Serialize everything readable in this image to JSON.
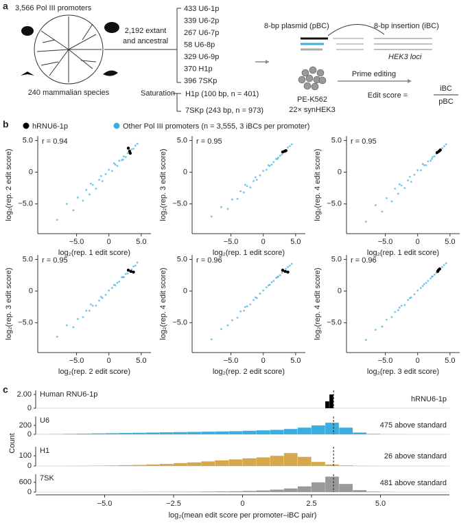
{
  "labels": {
    "a": "a",
    "b": "b",
    "c": "c"
  },
  "panel_a": {
    "promoters": "3,566 Pol III promoters",
    "species": "240 mammalian species",
    "extant": "2,192 extant",
    "ancestral": "and ancestral",
    "library": [
      "433 U6-1p",
      "339 U6-2p",
      "267 U6-7p",
      "58 U6-8p",
      "329 U6-9p",
      "370 H1p",
      "396 7SKp"
    ],
    "saturation": "Saturation",
    "saturation_items": [
      "H1p (100 bp, n = 401)",
      "7SKp (243 bp, n = 973)"
    ],
    "plasmid": "8-bp plasmid (pBC)",
    "insertion": "8-bp insertion (iBC)",
    "loci": "HEK3 loci",
    "cells": "PE-K562",
    "cells_sub": "22× synHEK3",
    "editing": "Prime editing",
    "score": "Edit score =",
    "numerator": "iBC",
    "denominator": "pBC"
  },
  "legend": [
    {
      "name": "hRNU6-1p",
      "color": "#000000"
    },
    {
      "name": "Other Pol III promoters (n = 3,555, 3 iBCs per promoter)",
      "color": "#3aaee0"
    }
  ],
  "count_label": "Count",
  "chart_data": [
    {
      "type": "scatter",
      "annotation": "r = 0.94",
      "xlabel": "log₂(rep. 1 edit score)",
      "ylabel": "log₂(rep. 2 edit score)",
      "xlim": [
        -11,
        6.5
      ],
      "ylim": [
        -9.7,
        5.7
      ],
      "xticks": [
        {
          "value": -5,
          "label": "−5.0"
        },
        0,
        {
          "value": 5,
          "label": "5.0"
        }
      ],
      "yticks": [
        {
          "value": -5,
          "label": "−5.0"
        },
        0,
        {
          "value": 5,
          "label": "5.0"
        }
      ],
      "series": [
        {
          "color": "#3aaee0",
          "x": [
            -8,
            -6.5,
            -5.5,
            -4.8,
            -4,
            -3.5,
            -3,
            -2.5,
            -2,
            -1.5,
            -1,
            -0.5,
            0,
            0.5,
            1,
            1.3,
            1.6,
            2,
            2.3,
            2.6,
            2.9,
            3.2,
            3.5,
            3.8,
            4.1,
            4.4,
            -2.8,
            -1.2,
            0.8,
            2.2
          ],
          "values": [
            -7.5,
            -5,
            -6,
            -4,
            -4.5,
            -2.8,
            -3.5,
            -2,
            -2.6,
            -1.2,
            -1.4,
            -0.3,
            0.4,
            0.2,
            1.2,
            1,
            1.8,
            1.9,
            2.5,
            2.4,
            3,
            3.1,
            3.6,
            3.7,
            4.2,
            4.5,
            -1.8,
            -0.6,
            1.4,
            2
          ]
        },
        {
          "color": "#000000",
          "x": [
            3.0,
            3.2,
            3.3
          ],
          "values": [
            3.8,
            3.3,
            3.0
          ]
        }
      ]
    },
    {
      "type": "scatter",
      "annotation": "r = 0.95",
      "xlabel": "log₂(rep. 1 edit score)",
      "ylabel": "log₂(rep. 3 edit score)",
      "xlim": [
        -11,
        6.5
      ],
      "ylim": [
        -9.7,
        5.7
      ],
      "xticks": [
        {
          "value": -5,
          "label": "−5.0"
        },
        0,
        {
          "value": 5,
          "label": "5.0"
        }
      ],
      "yticks": [
        {
          "value": -5,
          "label": "−5.0"
        },
        0,
        {
          "value": 5,
          "label": "5.0"
        }
      ],
      "series": [
        {
          "color": "#3aaee0",
          "x": [
            -8,
            -6.5,
            -5.5,
            -4.8,
            -4,
            -3.5,
            -3,
            -2.5,
            -2,
            -1.5,
            -1,
            -0.5,
            0,
            0.5,
            1,
            1.3,
            1.6,
            2,
            2.3,
            2.6,
            2.9,
            3.2,
            3.5,
            3.8,
            4.1,
            4.4,
            -2.8,
            -1.2,
            0.8,
            2.2
          ],
          "values": [
            -7,
            -5.5,
            -5.8,
            -4.3,
            -4.2,
            -3,
            -3.2,
            -2.2,
            -2.4,
            -1.4,
            -1.2,
            -0.5,
            0.2,
            0.4,
            1,
            1.2,
            1.6,
            2.1,
            2.3,
            2.6,
            2.8,
            3.2,
            3.5,
            3.9,
            4.1,
            4.4,
            -2,
            -0.8,
            1.1,
            2.1
          ]
        },
        {
          "color": "#000000",
          "x": [
            3.0,
            3.3,
            3.5
          ],
          "values": [
            3.2,
            3.3,
            3.4
          ]
        }
      ]
    },
    {
      "type": "scatter",
      "annotation": "r = 0.95",
      "xlabel": "log₂(rep. 1 edit score)",
      "ylabel": "log₂(rep. 4 edit score)",
      "xlim": [
        -11,
        6.5
      ],
      "ylim": [
        -9.7,
        5.7
      ],
      "xticks": [
        {
          "value": -5,
          "label": "−5.0"
        },
        0,
        {
          "value": 5,
          "label": "5.0"
        }
      ],
      "yticks": [
        {
          "value": -5,
          "label": "−5.0"
        },
        0,
        {
          "value": 5,
          "label": "5.0"
        }
      ],
      "series": [
        {
          "color": "#3aaee0",
          "x": [
            -8,
            -6.5,
            -5.5,
            -4.8,
            -4,
            -3.5,
            -3,
            -2.5,
            -2,
            -1.5,
            -1,
            -0.5,
            0,
            0.5,
            1,
            1.3,
            1.6,
            2,
            2.3,
            2.6,
            2.9,
            3.2,
            3.5,
            3.8,
            4.1,
            4.4,
            -2.8,
            -1.2,
            0.8,
            2.2
          ],
          "values": [
            -7.8,
            -5.2,
            -6.2,
            -4.1,
            -4.6,
            -2.6,
            -3.4,
            -2.1,
            -2.5,
            -1.3,
            -1.5,
            -0.4,
            0.3,
            0.3,
            1.1,
            1.1,
            1.7,
            1.8,
            2.4,
            2.5,
            2.9,
            3.2,
            3.5,
            3.8,
            4.1,
            4.4,
            -1.9,
            -0.7,
            1.3,
            2.1
          ]
        },
        {
          "color": "#000000",
          "x": [
            3.0,
            3.3,
            3.5
          ],
          "values": [
            3.1,
            3.3,
            3.5
          ]
        }
      ]
    },
    {
      "type": "scatter",
      "annotation": "r = 0.95",
      "xlabel": "log₂(rep. 2 edit score)",
      "ylabel": "log₂(rep. 3 edit score)",
      "xlim": [
        -11,
        6.5
      ],
      "ylim": [
        -9.7,
        5.7
      ],
      "xticks": [
        {
          "value": -5,
          "label": "−5.0"
        },
        0,
        {
          "value": 5,
          "label": "5.0"
        }
      ],
      "yticks": [
        {
          "value": -5,
          "label": "−5.0"
        },
        0,
        {
          "value": 5,
          "label": "5.0"
        }
      ],
      "series": [
        {
          "color": "#3aaee0",
          "x": [
            -8,
            -6.5,
            -5.5,
            -4.8,
            -4,
            -3.5,
            -3,
            -2.5,
            -2,
            -1.5,
            -1,
            -0.5,
            0,
            0.5,
            1,
            1.3,
            1.6,
            2,
            2.3,
            2.6,
            2.9,
            3.2,
            3.5,
            3.8,
            4.1,
            4.4,
            -2.8,
            -1.2,
            0.8,
            2.2
          ],
          "values": [
            -7.2,
            -5.4,
            -5.7,
            -4.4,
            -4.1,
            -3.1,
            -3.1,
            -2.3,
            -2.3,
            -1.5,
            -1.1,
            -0.6,
            0.1,
            0.5,
            0.9,
            1.3,
            1.5,
            2.2,
            2.2,
            2.7,
            2.8,
            3.2,
            3.4,
            3.9,
            4.0,
            4.5,
            -2.1,
            -0.9,
            1.0,
            2.2
          ]
        },
        {
          "color": "#000000",
          "x": [
            3.0,
            3.4,
            3.8
          ],
          "values": [
            3.3,
            3.1,
            3.0
          ]
        }
      ]
    },
    {
      "type": "scatter",
      "annotation": "r = 0.96",
      "xlabel": "log₂(rep. 2 edit score)",
      "ylabel": "log₂(rep. 4 edit score)",
      "xlim": [
        -11,
        6.5
      ],
      "ylim": [
        -9.7,
        5.7
      ],
      "xticks": [
        {
          "value": -5,
          "label": "−5.0"
        },
        0,
        {
          "value": 5,
          "label": "5.0"
        }
      ],
      "yticks": [
        {
          "value": -5,
          "label": "−5.0"
        },
        0,
        {
          "value": 5,
          "label": "5.0"
        }
      ],
      "series": [
        {
          "color": "#3aaee0",
          "x": [
            -8,
            -6.5,
            -5.5,
            -4.8,
            -4,
            -3.5,
            -3,
            -2.5,
            -2,
            -1.5,
            -1,
            -0.5,
            0,
            0.5,
            1,
            1.3,
            1.6,
            2,
            2.3,
            2.6,
            2.9,
            3.2,
            3.5,
            3.8,
            4.1,
            4.4,
            -2.8,
            -1.2,
            0.8,
            2.2
          ],
          "values": [
            -7.6,
            -6,
            -5.4,
            -4.6,
            -4.2,
            -3.2,
            -3.1,
            -2.4,
            -2.1,
            -1.4,
            -1.1,
            -0.4,
            0.1,
            0.6,
            1,
            1.4,
            1.6,
            2.1,
            2.3,
            2.5,
            2.9,
            3.1,
            3.5,
            3.8,
            4.0,
            4.3,
            -2.5,
            -1,
            0.9,
            2.2
          ]
        },
        {
          "color": "#000000",
          "x": [
            3.0,
            3.4,
            3.8
          ],
          "values": [
            3.3,
            3.1,
            3.0
          ]
        }
      ]
    },
    {
      "type": "scatter",
      "annotation": "r = 0.96",
      "xlabel": "log₂(rep. 3 edit score)",
      "ylabel": "log₂(rep. 4 edit score)",
      "xlim": [
        -11,
        6.5
      ],
      "ylim": [
        -9.7,
        5.7
      ],
      "xticks": [
        {
          "value": -5,
          "label": "−5.0"
        },
        0,
        {
          "value": 5,
          "label": "5.0"
        }
      ],
      "yticks": [
        {
          "value": -5,
          "label": "−5.0"
        },
        0,
        {
          "value": 5,
          "label": "5.0"
        }
      ],
      "series": [
        {
          "color": "#3aaee0",
          "x": [
            -8,
            -6.5,
            -5.5,
            -4.8,
            -4,
            -3.5,
            -3,
            -2.5,
            -2,
            -1.5,
            -1,
            -0.5,
            0,
            0.5,
            1,
            1.3,
            1.6,
            2,
            2.3,
            2.6,
            2.9,
            3.2,
            3.5,
            3.8,
            4.1,
            4.4,
            -2.8,
            -1.2,
            0.8,
            2.2
          ],
          "values": [
            -7.7,
            -6.1,
            -5.6,
            -4.5,
            -4.1,
            -3.3,
            -3,
            -2.3,
            -2.2,
            -1.4,
            -1.0,
            -0.5,
            0.1,
            0.5,
            1.1,
            1.3,
            1.6,
            2.0,
            2.3,
            2.6,
            2.9,
            3.2,
            3.5,
            3.8,
            4.1,
            4.4,
            -2.6,
            -1.1,
            0.8,
            2.3
          ]
        },
        {
          "color": "#000000",
          "x": [
            3.1,
            3.2,
            3.4
          ],
          "values": [
            3.1,
            3.3,
            3.5
          ]
        }
      ]
    },
    {
      "type": "histogram",
      "title": "Human RNU6-1p",
      "annotation": "hRNU6-1p",
      "color": "#000000",
      "xlim": [
        -7.5,
        7.5
      ],
      "ylim": [
        0,
        2.6
      ],
      "yticks": [
        0,
        {
          "value": 2,
          "label": "2.00"
        }
      ],
      "vline": 3.3,
      "bins": [
        3.0,
        3.15,
        3.3
      ],
      "counts": [
        1,
        2
      ]
    },
    {
      "type": "histogram",
      "title": "U6",
      "annotation": "475 above standard",
      "color": "#3aaee0",
      "xlim": [
        -7.5,
        7.5
      ],
      "ylim": [
        0,
        400
      ],
      "yticks": [
        0,
        200
      ],
      "vline": 3.3,
      "bins": [
        -7.5,
        -7,
        -6.5,
        -6,
        -5.5,
        -5,
        -4.5,
        -4,
        -3.5,
        -3,
        -2.5,
        -2,
        -1.5,
        -1,
        -0.5,
        0,
        0.5,
        1,
        1.5,
        2,
        2.5,
        3,
        3.5,
        4,
        4.5,
        5,
        5.5,
        6
      ],
      "counts": [
        2,
        5,
        10,
        15,
        20,
        25,
        30,
        35,
        40,
        45,
        50,
        55,
        60,
        65,
        70,
        80,
        90,
        100,
        120,
        150,
        200,
        260,
        150,
        40,
        10,
        3,
        1
      ]
    },
    {
      "type": "histogram",
      "title": "H1",
      "annotation": "26 above standard",
      "color": "#d4a84b",
      "xlim": [
        -7.5,
        7.5
      ],
      "ylim": [
        0,
        190
      ],
      "yticks": [
        0,
        100
      ],
      "vline": 3.3,
      "bins": [
        -7.5,
        -7,
        -6.5,
        -6,
        -5.5,
        -5,
        -4.5,
        -4,
        -3.5,
        -3,
        -2.5,
        -2,
        -1.5,
        -1,
        -0.5,
        0,
        0.5,
        1,
        1.5,
        2,
        2.5,
        3,
        3.5,
        4,
        4.5,
        5,
        5.5,
        6
      ],
      "counts": [
        0,
        0,
        1,
        2,
        3,
        5,
        8,
        10,
        15,
        20,
        28,
        35,
        45,
        55,
        65,
        75,
        85,
        100,
        127,
        90,
        40,
        15,
        6,
        2,
        1,
        0,
        0
      ]
    },
    {
      "type": "histogram",
      "title": "7SK",
      "annotation": "481 above standard",
      "color": "#999999",
      "xlim": [
        -7.5,
        7.5
      ],
      "ylim": [
        0,
        1100
      ],
      "yticks": [
        0,
        600
      ],
      "vline": 3.3,
      "bins": [
        -7.5,
        -7,
        -6.5,
        -6,
        -5.5,
        -5,
        -4.5,
        -4,
        -3.5,
        -3,
        -2.5,
        -2,
        -1.5,
        -1,
        -0.5,
        0,
        0.5,
        1,
        1.5,
        2,
        2.5,
        3,
        3.5,
        4,
        4.5,
        5,
        5.5,
        6
      ],
      "counts": [
        0,
        0,
        0,
        0,
        1,
        2,
        3,
        5,
        8,
        10,
        15,
        20,
        30,
        40,
        50,
        70,
        100,
        150,
        220,
        350,
        600,
        950,
        500,
        120,
        30,
        8,
        2
      ],
      "xlabel": "log₂(mean edit score per promoter–iBC pair)",
      "xticks": [
        {
          "value": -5,
          "label": "−5.0"
        },
        {
          "value": -2.5,
          "label": "−2.5"
        },
        0,
        {
          "value": 2.5,
          "label": "2.5"
        },
        {
          "value": 5,
          "label": "5.0"
        }
      ]
    }
  ]
}
